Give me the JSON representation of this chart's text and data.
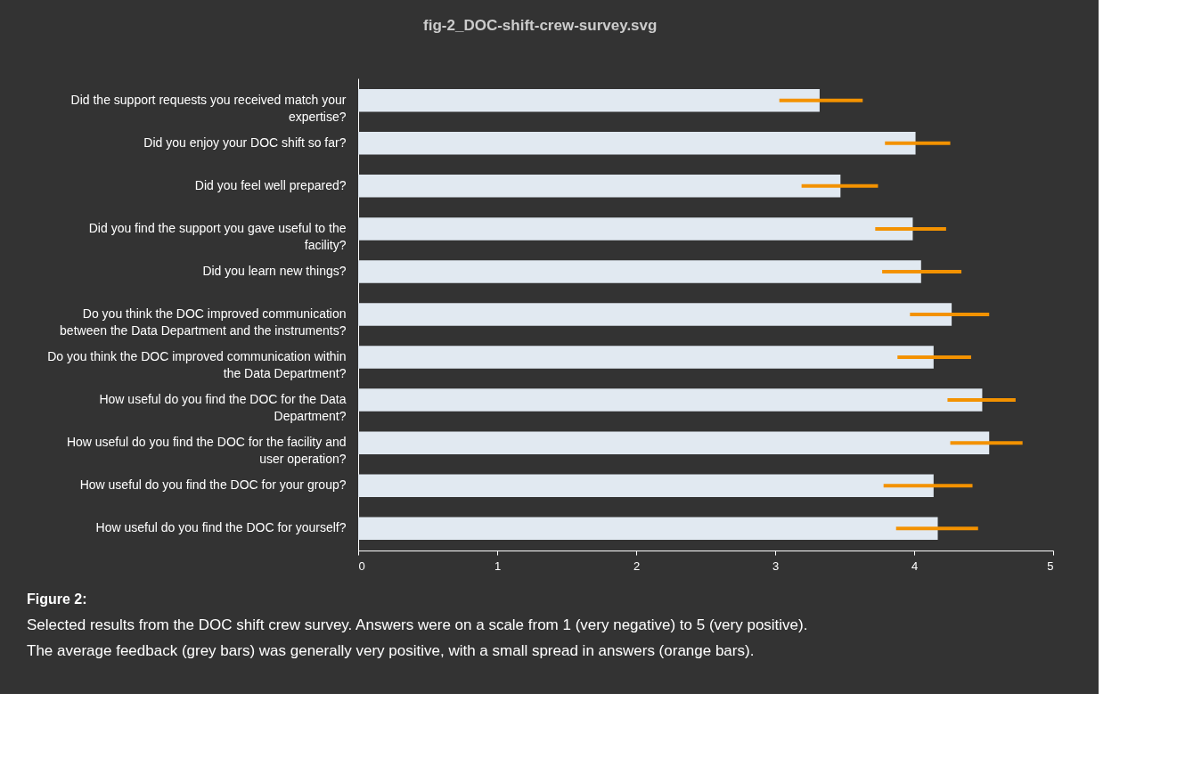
{
  "chart_data": {
    "type": "bar",
    "orientation": "horizontal",
    "title": "fig-2_DOC-shift-crew-survey.svg",
    "categories": [
      "Did the support requests you received match your expertise?",
      "Did you enjoy your DOC shift so far?",
      "Did you feel well prepared?",
      "Did you find the support you gave useful to the facility?",
      "Did you learn new things?",
      "Do you think the DOC improved communication between the Data Department and the instruments?",
      "Do you think the DOC improved communication within the Data Department?",
      "How useful do you find the DOC for the Data Department?",
      "How useful do you find the DOC for the facility and user operation?",
      "How useful do you find the DOC for your group?",
      "How useful do you find the DOC for yourself?"
    ],
    "values": [
      3.32,
      4.01,
      3.47,
      3.99,
      4.05,
      4.27,
      4.14,
      4.49,
      4.54,
      4.14,
      4.17
    ],
    "errors": [
      [
        3.03,
        3.63
      ],
      [
        3.79,
        4.26
      ],
      [
        3.19,
        3.74
      ],
      [
        3.72,
        4.23
      ],
      [
        3.77,
        4.34
      ],
      [
        3.97,
        4.54
      ],
      [
        3.88,
        4.41
      ],
      [
        4.24,
        4.73
      ],
      [
        4.26,
        4.78
      ],
      [
        3.78,
        4.42
      ],
      [
        3.87,
        4.46
      ]
    ],
    "color": "#e1e9f1",
    "xlim": [
      0,
      5
    ],
    "xticks": [
      0,
      1,
      2,
      3,
      4,
      5
    ],
    "grid": false,
    "annotations": [
      "Figure 2:",
      "Selected results from the DOC shift crew survey. Answers were on a scale from 1 (very negative) to 5 (very positive).",
      "The average feedback (grey bars) was generally very positive, with a small spread in answers (orange bars)."
    ]
  }
}
